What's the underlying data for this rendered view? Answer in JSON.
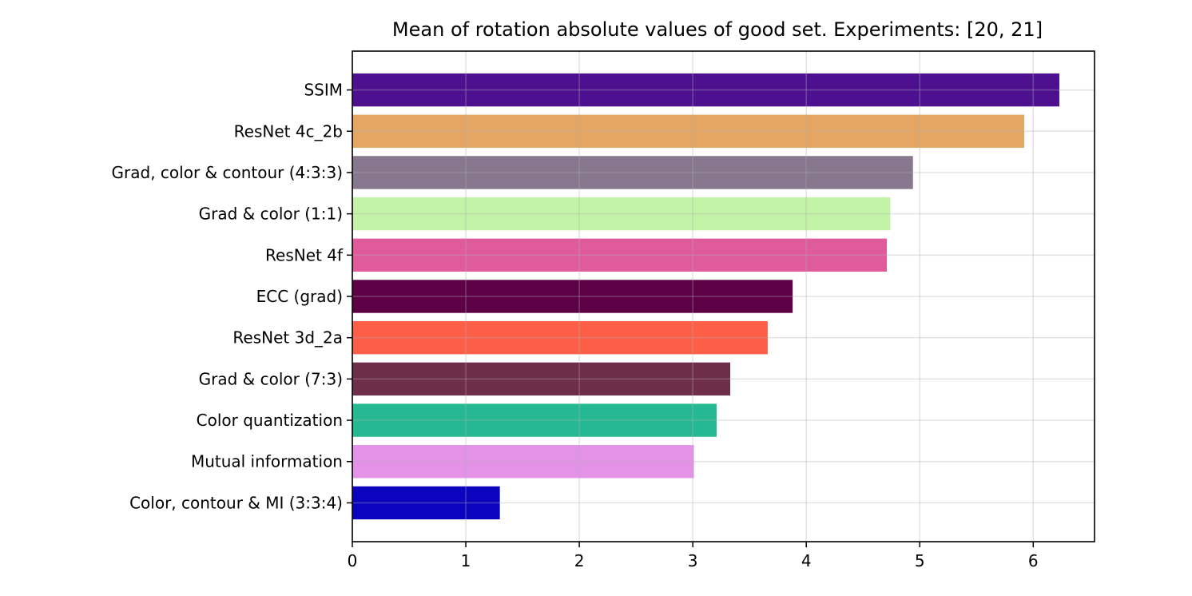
{
  "chart_data": {
    "type": "bar",
    "orientation": "horizontal",
    "title": "Mean of rotation absolute values of good set. Experiments: [20, 21]",
    "xlabel": "",
    "ylabel": "",
    "xlim": [
      0,
      6.54
    ],
    "xticks": [
      "0",
      "1",
      "2",
      "3",
      "4",
      "5",
      "6"
    ],
    "grid": true,
    "categories": [
      "SSIM",
      "ResNet 4c_2b",
      "Grad, color & contour (4:3:3)",
      "Grad & color (1:1)",
      "ResNet 4f",
      "ECC (grad)",
      "ResNet 3d_2a",
      "Grad & color (7:3)",
      "Color quantization",
      "Mutual information",
      "Color, contour & MI (3:3:4)"
    ],
    "values": [
      6.23,
      5.92,
      4.94,
      4.74,
      4.71,
      3.88,
      3.66,
      3.33,
      3.21,
      3.01,
      1.3
    ],
    "colors": [
      "#4d1190",
      "#e5a663",
      "#87788f",
      "#c2f3a6",
      "#df5b9b",
      "#5e0045",
      "#fd5e48",
      "#6e2d4a",
      "#25b892",
      "#e492e7",
      "#0c03bf"
    ]
  }
}
